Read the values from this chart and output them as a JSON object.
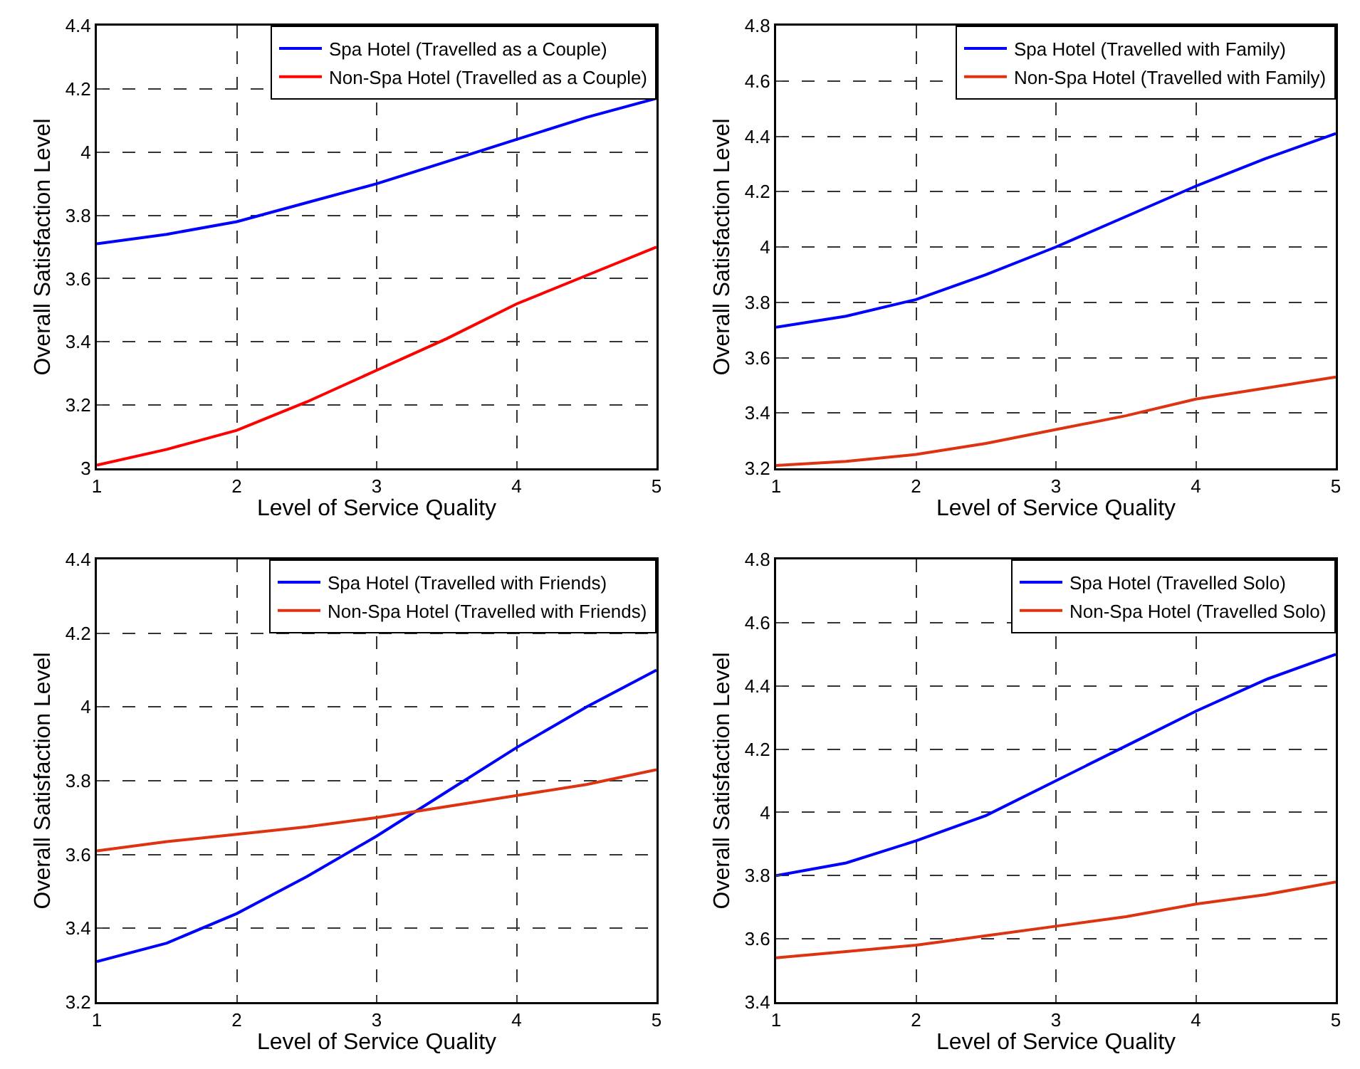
{
  "chart_data": [
    {
      "type": "line",
      "xlabel": "Level of Service Quality",
      "ylabel": "Overall Satisfaction Level",
      "x": [
        1,
        1.5,
        2,
        2.5,
        3,
        3.5,
        4,
        4.5,
        5
      ],
      "xlim": [
        1,
        5
      ],
      "xticks": [
        1,
        2,
        3,
        4,
        5
      ],
      "ylim": [
        3,
        4.4
      ],
      "yticks": [
        3,
        3.2,
        3.4,
        3.6,
        3.8,
        4,
        4.2,
        4.4
      ],
      "grid": true,
      "legend": "top right",
      "line_style": "solid",
      "series": [
        {
          "name": "Spa Hotel (Travelled as a Couple)",
          "color": "#0000ff",
          "values": [
            3.71,
            3.74,
            3.78,
            3.84,
            3.9,
            3.97,
            4.04,
            4.11,
            4.17
          ]
        },
        {
          "name": "Non-Spa Hotel (Travelled as a Couple)",
          "color": "#ff0000",
          "values": [
            3.01,
            3.06,
            3.12,
            3.21,
            3.31,
            3.41,
            3.52,
            3.61,
            3.7
          ]
        }
      ]
    },
    {
      "type": "line",
      "xlabel": "Level of Service Quality",
      "ylabel": "Overall Satisfaction Level",
      "x": [
        1,
        1.5,
        2,
        2.5,
        3,
        3.5,
        4,
        4.5,
        5
      ],
      "xlim": [
        1,
        5
      ],
      "xticks": [
        1,
        2,
        3,
        4,
        5
      ],
      "ylim": [
        3.2,
        4.8
      ],
      "yticks": [
        3.2,
        3.4,
        3.6,
        3.8,
        4,
        4.2,
        4.4,
        4.6,
        4.8
      ],
      "grid": true,
      "legend": "top right",
      "line_style": "solid",
      "series": [
        {
          "name": "Spa Hotel (Travelled with Family)",
          "color": "#0000ff",
          "values": [
            3.71,
            3.75,
            3.81,
            3.9,
            4.0,
            4.11,
            4.22,
            4.32,
            4.41
          ]
        },
        {
          "name": "Non-Spa Hotel (Travelled with Family)",
          "color": "#dd3311",
          "values": [
            3.21,
            3.225,
            3.25,
            3.29,
            3.34,
            3.39,
            3.45,
            3.49,
            3.53
          ]
        }
      ]
    },
    {
      "type": "line",
      "xlabel": "Level of Service Quality",
      "ylabel": "Overall Satisfaction Level",
      "x": [
        1,
        1.5,
        2,
        2.5,
        3,
        3.5,
        4,
        4.5,
        5
      ],
      "xlim": [
        1,
        5
      ],
      "xticks": [
        1,
        2,
        3,
        4,
        5
      ],
      "ylim": [
        3.2,
        4.4
      ],
      "yticks": [
        3.2,
        3.4,
        3.6,
        3.8,
        4,
        4.2,
        4.4
      ],
      "grid": true,
      "legend": "top right",
      "line_style": "solid",
      "series": [
        {
          "name": "Spa Hotel (Travelled with Friends)",
          "color": "#0000ff",
          "values": [
            3.31,
            3.36,
            3.44,
            3.54,
            3.65,
            3.77,
            3.89,
            4.0,
            4.1
          ]
        },
        {
          "name": "Non-Spa Hotel (Travelled with Friends)",
          "color": "#dd3311",
          "values": [
            3.61,
            3.635,
            3.655,
            3.675,
            3.7,
            3.73,
            3.76,
            3.79,
            3.83
          ]
        }
      ]
    },
    {
      "type": "line",
      "xlabel": "Level of Service Quality",
      "ylabel": "Overall Satisfaction Level",
      "x": [
        1,
        1.5,
        2,
        2.5,
        3,
        3.5,
        4,
        4.5,
        5
      ],
      "xlim": [
        1,
        5
      ],
      "xticks": [
        1,
        2,
        3,
        4,
        5
      ],
      "ylim": [
        3.4,
        4.8
      ],
      "yticks": [
        3.4,
        3.6,
        3.8,
        4,
        4.2,
        4.4,
        4.6,
        4.8
      ],
      "grid": true,
      "legend": "top right",
      "line_style": "solid",
      "series": [
        {
          "name": "Spa Hotel (Travelled Solo)",
          "color": "#0000ff",
          "values": [
            3.8,
            3.84,
            3.91,
            3.99,
            4.1,
            4.21,
            4.32,
            4.42,
            4.5
          ]
        },
        {
          "name": "Non-Spa Hotel (Travelled Solo)",
          "color": "#dd3311",
          "values": [
            3.54,
            3.56,
            3.58,
            3.61,
            3.64,
            3.67,
            3.71,
            3.74,
            3.78
          ]
        }
      ]
    }
  ]
}
